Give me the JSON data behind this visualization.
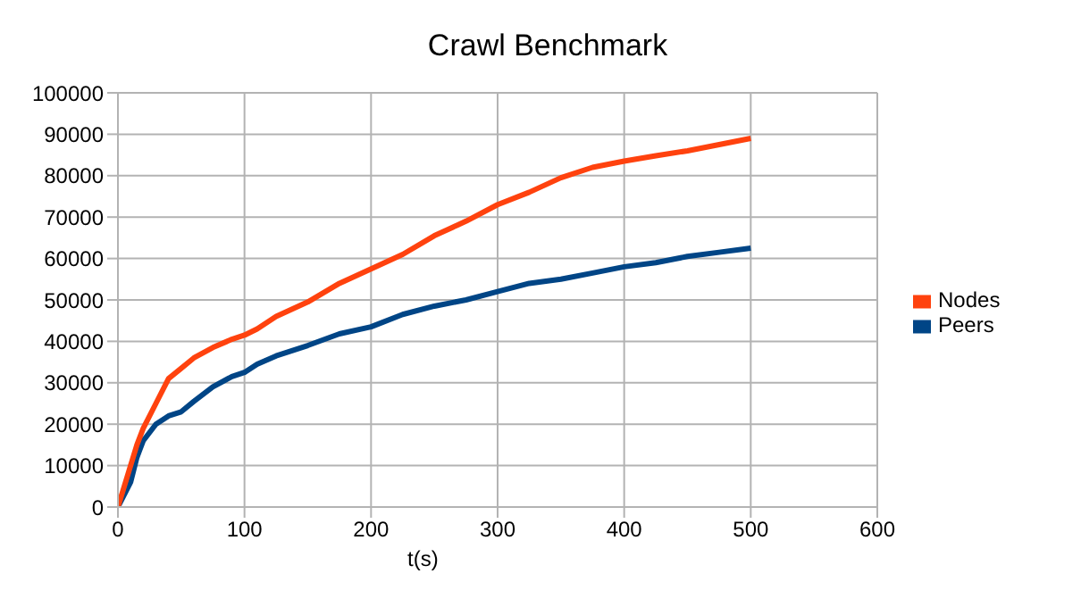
{
  "chart_data": {
    "type": "line",
    "title": "Crawl Benchmark",
    "xlabel": "t(s)",
    "x": [
      0,
      5,
      10,
      15,
      20,
      30,
      40,
      50,
      60,
      75,
      90,
      100,
      110,
      125,
      150,
      175,
      200,
      225,
      250,
      275,
      300,
      325,
      350,
      375,
      400,
      425,
      450,
      475,
      500
    ],
    "series": [
      {
        "name": "Peers",
        "color": "#004586",
        "values": [
          0,
          3000,
          6000,
          12000,
          16000,
          20000,
          22000,
          23000,
          25500,
          29000,
          31500,
          32500,
          34500,
          36500,
          39000,
          41800,
          43500,
          46500,
          48500,
          50000,
          52000,
          54000,
          55000,
          56500,
          58000,
          59000,
          60500,
          61500,
          62500
        ]
      },
      {
        "name": "Nodes",
        "color": "#ff420e",
        "values": [
          0,
          5000,
          10000,
          15000,
          19000,
          25000,
          31000,
          33500,
          36000,
          38500,
          40500,
          41500,
          43000,
          46000,
          49500,
          54000,
          57500,
          61000,
          65500,
          69000,
          73000,
          76000,
          79500,
          82000,
          83500,
          84800,
          86000,
          87500,
          89000
        ]
      }
    ],
    "xlim": [
      0,
      600
    ],
    "xticks": [
      0,
      100,
      200,
      300,
      400,
      500,
      600
    ],
    "ylim": [
      0,
      100000
    ],
    "yticks": [
      0,
      10000,
      20000,
      30000,
      40000,
      50000,
      60000,
      70000,
      80000,
      90000,
      100000
    ],
    "grid": true,
    "legend": "right",
    "marker": "none",
    "line_style": "solid"
  }
}
